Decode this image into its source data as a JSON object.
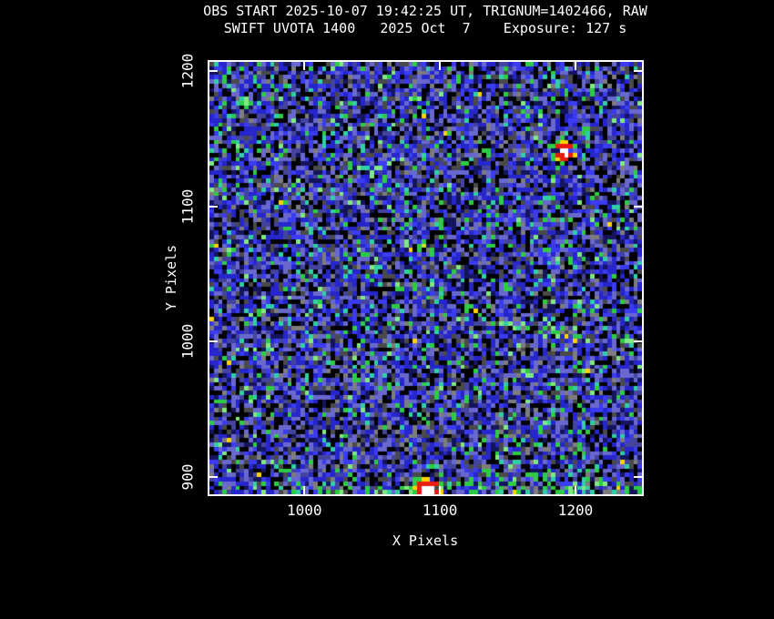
{
  "chart_data": {
    "type": "heatmap",
    "title": "OBS START 2025-10-07 19:42:25 UT, TRIGNUM=1402466, RAW",
    "subtitle": "SWIFT UVOTA 1400   2025 Oct  7    Exposure: 127 s",
    "obs_start_ut": "2025-10-07 19:42:25",
    "trigger_number": 1402466,
    "processing": "RAW",
    "instrument": "SWIFT UVOTA",
    "mode": "1400",
    "obs_date": "2025 Oct 7",
    "exposure_s": 127,
    "xlabel": "X Pixels",
    "ylabel": "Y Pixels",
    "x_ticks": [
      1000,
      1100,
      1200
    ],
    "y_ticks": [
      900,
      1000,
      1100,
      1200
    ],
    "xlim": [
      930,
      1249
    ],
    "ylim": [
      887,
      1207
    ],
    "grid": false,
    "legend": "none",
    "colormap": "rainbow: black/blue background, green mid, yellow-red-white bright",
    "background_description": "speckled detector noise of black, gray, blue and purple cells with scattered green and cyan counts",
    "palette": {
      "black": "#000000",
      "gray_dark": "#4a4a4a",
      "gray": "#7d7d7d",
      "navy": "#15155e",
      "blue": "#2626cc",
      "blue_bright": "#3b3bf2",
      "periwinkle": "#6868cf",
      "indigo": "#44449f",
      "green": "#2ecc44",
      "teal": "#31cfa6",
      "green_light": "#82e882",
      "chartreuse": "#c8e62e",
      "yellow": "#ffd400",
      "orange": "#ff8a00",
      "red": "#ea1c0d",
      "white": "#ffffff",
      "frame": "#ffffff",
      "text": "#ffffff",
      "page_bg": "#000000"
    },
    "sources": [
      {
        "id": "bright-source-northeast",
        "x": 1192,
        "y": 1141,
        "appearance": "saturated star: white core, red ring, thin yellow rim, green speckle halo",
        "rings": [
          {
            "r": 5,
            "c": "white",
            "p": 1
          },
          {
            "r": 9.5,
            "c": "red",
            "p": 0.94
          },
          {
            "r": 12,
            "c": "yellow",
            "p": 0.6
          },
          {
            "r": 15.5,
            "c": "green",
            "p": 0.5
          },
          {
            "r": 19,
            "c": "green",
            "p": 0.17
          }
        ]
      },
      {
        "id": "bright-source-south-clipped",
        "x": 1091,
        "y": 890,
        "xs": 0.85,
        "ys": 1.1,
        "appearance": "saturated star clipped by bottom axis: white core, red ring, yellow-green halo",
        "rings": [
          {
            "r": 7,
            "c": "white",
            "p": 1
          },
          {
            "r": 12,
            "c": "red",
            "p": 0.94
          },
          {
            "r": 14.5,
            "c": "yellow",
            "p": 0.55
          },
          {
            "r": 18,
            "c": "green",
            "p": 0.4
          },
          {
            "r": 23,
            "c": "green",
            "p": 0.14
          }
        ]
      },
      {
        "id": "moderate-source-center",
        "x": 1125,
        "y": 1024,
        "appearance": "small yellow-orange knot with green edge",
        "rings": [
          {
            "r": 2.6,
            "c": "yellow",
            "p": 1
          },
          {
            "r": 4.4,
            "c": "orange",
            "p": 0.35
          },
          {
            "r": 6.6,
            "c": "green",
            "p": 0.7
          },
          {
            "r": 9.5,
            "c": "green",
            "p": 0.28
          }
        ]
      },
      {
        "id": "faint-source-center",
        "x": 1087,
        "y": 1072,
        "appearance": "faint yellow-green knot",
        "rings": [
          {
            "r": 2.6,
            "c": "chartreuse",
            "p": 1
          },
          {
            "r": 5.6,
            "c": "green",
            "p": 0.75
          },
          {
            "r": 8,
            "c": "green",
            "p": 0.25
          }
        ]
      },
      {
        "id": "faint-clump-northwest",
        "x": 1034,
        "y": 1176,
        "appearance": "very faint green clump",
        "rings": [
          {
            "r": 3,
            "c": "green",
            "p": 0.7
          },
          {
            "r": 5.5,
            "c": "green",
            "p": 0.25
          }
        ]
      }
    ],
    "diffuse_regions": [
      {
        "id": "bottom-right-enhancement",
        "x_range": [
          1140,
          1249
        ],
        "y_range": [
          887,
          903
        ],
        "strength": 0.38
      },
      {
        "id": "bottom-center-enhancement",
        "x_range": [
          1020,
          1140
        ],
        "y_range": [
          887,
          898
        ],
        "strength": 0.22
      },
      {
        "id": "bottom-left-enhancement",
        "x_range": [
          930,
          1020
        ],
        "y_range": [
          887,
          896
        ],
        "strength": 0.15
      }
    ]
  }
}
